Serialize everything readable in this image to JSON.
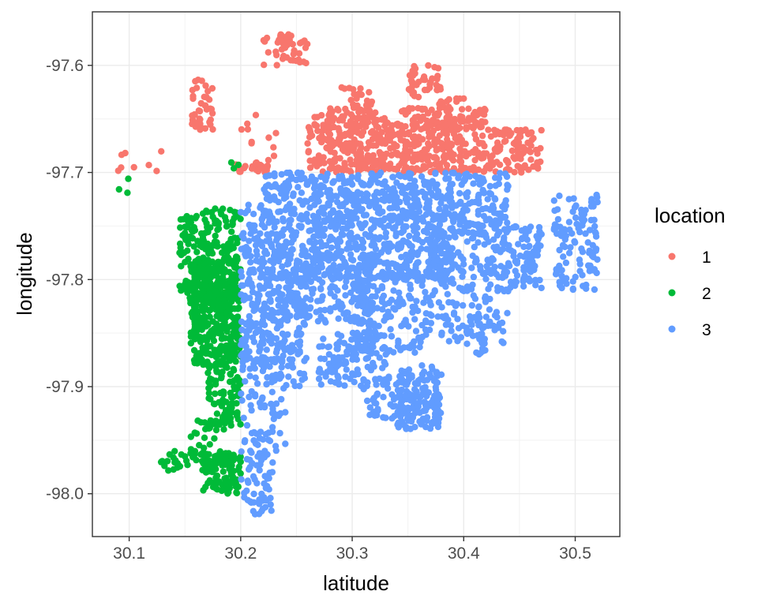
{
  "chart_data": {
    "type": "scatter",
    "title": "",
    "xlabel": "latitude",
    "ylabel": "longitude",
    "xlim": [
      30.067,
      30.54
    ],
    "ylim": [
      -98.04,
      -97.55
    ],
    "x_ticks": [
      30.1,
      30.2,
      30.3,
      30.4,
      30.5
    ],
    "x_tick_labels": [
      "30.1",
      "30.2",
      "30.3",
      "30.4",
      "30.5"
    ],
    "y_ticks": [
      -98.0,
      -97.9,
      -97.8,
      -97.7,
      -97.6
    ],
    "y_tick_labels": [
      "-98.0",
      "-97.9",
      "-97.8",
      "-97.7",
      "-97.6"
    ],
    "grid": true,
    "legend": {
      "title": "location",
      "position": "right",
      "entries": [
        {
          "label": "1",
          "color": "#F8766D"
        },
        {
          "label": "2",
          "color": "#00BA38"
        },
        {
          "label": "3",
          "color": "#619CFF"
        }
      ]
    },
    "series": [
      {
        "name": "1",
        "color": "#F8766D",
        "clusters": [
          {
            "x": [
              30.22,
              30.26
            ],
            "y": [
              -97.6,
              -97.57
            ],
            "n": 45
          },
          {
            "x": [
              30.155,
              30.175
            ],
            "y": [
              -97.66,
              -97.61
            ],
            "n": 30
          },
          {
            "x": [
              30.155,
              30.17
            ],
            "y": [
              -97.66,
              -97.645
            ],
            "n": 10
          },
          {
            "x": [
              30.26,
              30.33
            ],
            "y": [
              -97.7,
              -97.64
            ],
            "n": 260
          },
          {
            "x": [
              30.33,
              30.42
            ],
            "y": [
              -97.7,
              -97.64
            ],
            "n": 300
          },
          {
            "x": [
              30.35,
              30.38
            ],
            "y": [
              -97.63,
              -97.6
            ],
            "n": 40
          },
          {
            "x": [
              30.42,
              30.47
            ],
            "y": [
              -97.7,
              -97.66
            ],
            "n": 100
          },
          {
            "x": [
              30.375,
              30.4
            ],
            "y": [
              -97.66,
              -97.63
            ],
            "n": 25
          },
          {
            "x": [
              30.29,
              30.32
            ],
            "y": [
              -97.64,
              -97.62
            ],
            "n": 20
          },
          {
            "x": [
              30.21,
              30.225
            ],
            "y": [
              -97.7,
              -97.69
            ],
            "n": 20
          },
          {
            "x": [
              30.195,
              30.205
            ],
            "y": [
              -97.7,
              -97.69
            ],
            "n": 8
          },
          {
            "x": [
              30.085,
              30.13
            ],
            "y": [
              -97.7,
              -97.68
            ],
            "n": 8
          },
          {
            "x": [
              30.2,
              30.24
            ],
            "y": [
              -97.7,
              -97.63
            ],
            "n": 12
          }
        ]
      },
      {
        "name": "2",
        "color": "#00BA38",
        "clusters": [
          {
            "x": [
              30.155,
              30.2
            ],
            "y": [
              -97.88,
              -97.78
            ],
            "n": 420
          },
          {
            "x": [
              30.145,
              30.18
            ],
            "y": [
              -97.82,
              -97.74
            ],
            "n": 120
          },
          {
            "x": [
              30.165,
              30.2
            ],
            "y": [
              -97.82,
              -97.73
            ],
            "n": 120
          },
          {
            "x": [
              30.17,
              30.2
            ],
            "y": [
              -97.94,
              -97.88
            ],
            "n": 90
          },
          {
            "x": [
              30.155,
              30.18
            ],
            "y": [
              -97.97,
              -97.93
            ],
            "n": 30
          },
          {
            "x": [
              30.165,
              30.2
            ],
            "y": [
              -98.0,
              -97.96
            ],
            "n": 90
          },
          {
            "x": [
              30.125,
              30.155
            ],
            "y": [
              -97.98,
              -97.96
            ],
            "n": 18
          },
          {
            "x": [
              30.085,
              30.105
            ],
            "y": [
              -97.72,
              -97.7
            ],
            "n": 3
          },
          {
            "x": [
              30.19,
              30.2
            ],
            "y": [
              -97.7,
              -97.69
            ],
            "n": 3
          }
        ]
      },
      {
        "name": "3",
        "color": "#619CFF",
        "clusters": [
          {
            "x": [
              30.2,
              30.26
            ],
            "y": [
              -97.9,
              -97.73
            ],
            "n": 420
          },
          {
            "x": [
              30.22,
              30.26
            ],
            "y": [
              -97.73,
              -97.7
            ],
            "n": 60
          },
          {
            "x": [
              30.26,
              30.39
            ],
            "y": [
              -97.8,
              -97.7
            ],
            "n": 700
          },
          {
            "x": [
              30.24,
              30.32
            ],
            "y": [
              -97.84,
              -97.78
            ],
            "n": 150
          },
          {
            "x": [
              30.27,
              30.33
            ],
            "y": [
              -97.9,
              -97.85
            ],
            "n": 110
          },
          {
            "x": [
              30.3,
              30.37
            ],
            "y": [
              -97.87,
              -97.79
            ],
            "n": 180
          },
          {
            "x": [
              30.34,
              30.38
            ],
            "y": [
              -97.94,
              -97.88
            ],
            "n": 140
          },
          {
            "x": [
              30.31,
              30.36
            ],
            "y": [
              -97.93,
              -97.89
            ],
            "n": 60
          },
          {
            "x": [
              30.37,
              30.44
            ],
            "y": [
              -97.86,
              -97.74
            ],
            "n": 240
          },
          {
            "x": [
              30.39,
              30.44
            ],
            "y": [
              -97.76,
              -97.7
            ],
            "n": 110
          },
          {
            "x": [
              30.44,
              30.47
            ],
            "y": [
              -97.81,
              -97.75
            ],
            "n": 80
          },
          {
            "x": [
              30.48,
              30.52
            ],
            "y": [
              -97.81,
              -97.72
            ],
            "n": 110
          },
          {
            "x": [
              30.41,
              30.42
            ],
            "y": [
              -97.87,
              -97.85
            ],
            "n": 12
          },
          {
            "x": [
              30.2,
              30.23
            ],
            "y": [
              -98.02,
              -97.96
            ],
            "n": 60
          },
          {
            "x": [
              30.2,
              30.24
            ],
            "y": [
              -97.96,
              -97.9
            ],
            "n": 50
          },
          {
            "x": [
              30.225,
              30.24
            ],
            "y": [
              -97.9,
              -97.76
            ],
            "n": 40
          }
        ]
      }
    ]
  }
}
